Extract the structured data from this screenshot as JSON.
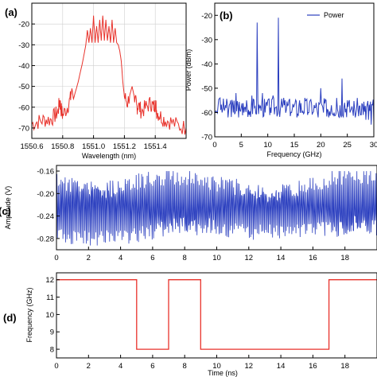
{
  "chart_data": [
    {
      "panel": "(a)",
      "type": "line",
      "xlabel": "Wavelength (nm)",
      "ylabel": "",
      "xlim": [
        1550.6,
        1551.6
      ],
      "ylim": [
        -75,
        -10
      ],
      "xticks": [
        1550.6,
        1550.8,
        1551.0,
        1551.2,
        1551.4
      ],
      "xtick_labels": [
        "1550.6",
        "1550.8",
        "1551.0",
        "1551.2",
        "1551.4"
      ],
      "yticks": [
        -70,
        -60,
        -50,
        -40,
        -30,
        -20
      ],
      "ytick_labels": [
        "-70",
        "-60",
        "-50",
        "-40",
        "-30",
        "-20"
      ],
      "grid": true,
      "color": "#e8322b",
      "series": [
        {
          "x": [
            1550.6,
            1550.64,
            1550.68,
            1550.72,
            1550.75,
            1550.77,
            1550.78,
            1550.79,
            1550.8,
            1550.83,
            1550.85,
            1550.86,
            1550.87,
            1550.9,
            1550.93,
            1550.95,
            1550.96,
            1550.97,
            1550.98,
            1550.99,
            1551.0,
            1551.01,
            1551.02,
            1551.03,
            1551.04,
            1551.05,
            1551.06,
            1551.07,
            1551.08,
            1551.09,
            1551.1,
            1551.11,
            1551.12,
            1551.13,
            1551.14,
            1551.15,
            1551.16,
            1551.17,
            1551.18,
            1551.19,
            1551.2,
            1551.22,
            1551.25,
            1551.27,
            1551.28,
            1551.29,
            1551.31,
            1551.34,
            1551.37,
            1551.39,
            1551.4,
            1551.41,
            1551.43,
            1551.46,
            1551.5,
            1551.55,
            1551.6
          ],
          "y": [
            -68,
            -67,
            -66,
            -66,
            -64,
            -62,
            -57,
            -61,
            -64,
            -60,
            -56,
            -51,
            -56,
            -48,
            -38,
            -30,
            -23,
            -29,
            -22,
            -29,
            -16,
            -29,
            -21,
            -29,
            -18,
            -28,
            -16,
            -28,
            -18,
            -28,
            -21,
            -29,
            -18,
            -29,
            -22,
            -29,
            -30,
            -33,
            -38,
            -48,
            -55,
            -58,
            -50,
            -57,
            -60,
            -59,
            -62,
            -60,
            -58,
            -60,
            -58,
            -62,
            -64,
            -66,
            -67,
            -69,
            -70
          ]
        }
      ]
    },
    {
      "panel": "(b)",
      "type": "line",
      "xlabel": "Frequency (GHz)",
      "ylabel": "Power (dBm)",
      "xlim": [
        0,
        30
      ],
      "ylim": [
        -70,
        -15
      ],
      "xticks": [
        0,
        5,
        10,
        15,
        20,
        25,
        30
      ],
      "xtick_labels": [
        "0",
        "5",
        "10",
        "15",
        "20",
        "25",
        "30"
      ],
      "yticks": [
        -70,
        -60,
        -50,
        -40,
        -30,
        -20
      ],
      "ytick_labels": [
        "-70",
        "-60",
        "-50",
        "-40",
        "-30",
        "-20"
      ],
      "legend": "Power",
      "legend_position": "top-right",
      "color": "#2b3fbf",
      "series": [
        {
          "name": "Power",
          "x": [
            0,
            1,
            1.5,
            2,
            2.5,
            3,
            3.5,
            4,
            4.5,
            5,
            5.5,
            6,
            6.5,
            7,
            7.5,
            8,
            8.5,
            9,
            9.5,
            10,
            10.5,
            11,
            11.5,
            12,
            12.5,
            13,
            13.5,
            14,
            14.5,
            15,
            15.5,
            16,
            16.5,
            17,
            17.5,
            18,
            18.5,
            19,
            19.5,
            20,
            20.5,
            21,
            21.5,
            22,
            22.5,
            23,
            23.5,
            24,
            24.5,
            25,
            25.5,
            26,
            26.5,
            27,
            27.5,
            28,
            28.5,
            29,
            29.5,
            30
          ],
          "y": [
            -60,
            -54,
            -59,
            -57,
            -62,
            -55,
            -60,
            -52,
            -62,
            -58,
            -60,
            -55,
            -61,
            -53,
            -58,
            -23,
            -58,
            -52,
            -60,
            -55,
            -58,
            -53,
            -58,
            -21,
            -57,
            -54,
            -59,
            -55,
            -60,
            -57,
            -62,
            -55,
            -60,
            -54,
            -61,
            -55,
            -60,
            -58,
            -62,
            -50,
            -60,
            -55,
            -62,
            -57,
            -60,
            -54,
            -62,
            -46,
            -56,
            -55,
            -60,
            -59,
            -62,
            -58,
            -61,
            -61,
            -63,
            -63,
            -65,
            -64
          ]
        }
      ]
    },
    {
      "panel": "(c)",
      "type": "line",
      "xlabel": "",
      "ylabel": "Amplitude (V)",
      "xlim": [
        0,
        20
      ],
      "ylim": [
        -0.3,
        -0.15
      ],
      "xticks": [
        0,
        2,
        4,
        6,
        8,
        10,
        12,
        14,
        16,
        18
      ],
      "xtick_labels": [
        "0",
        "2",
        "4",
        "6",
        "8",
        "10",
        "12",
        "14",
        "16",
        "18"
      ],
      "yticks": [
        -0.16,
        -0.2,
        -0.24,
        -0.28
      ],
      "ytick_labels": [
        "-0.16",
        "-0.20",
        "-0.24",
        "-0.28"
      ],
      "color": "#2b3fbf",
      "signal_note": "dense oscillation between about -0.17 V and -0.29 V over the full window"
    },
    {
      "panel": "(d)",
      "type": "line",
      "xlabel": "Time (ns)",
      "ylabel": "Frequency (GHz)",
      "xlim": [
        0,
        20
      ],
      "ylim": [
        7.5,
        12.4
      ],
      "xticks": [
        0,
        2,
        4,
        6,
        8,
        10,
        12,
        14,
        16,
        18
      ],
      "xtick_labels": [
        "0",
        "2",
        "4",
        "6",
        "8",
        "10",
        "12",
        "14",
        "16",
        "18"
      ],
      "yticks": [
        8,
        9,
        10,
        11,
        12
      ],
      "ytick_labels": [
        "8",
        "9",
        "10",
        "11",
        "12"
      ],
      "color": "#e8322b",
      "series": [
        {
          "x": [
            0,
            5,
            5,
            7,
            7,
            9,
            9,
            17,
            17,
            20
          ],
          "y": [
            12,
            12,
            8,
            8,
            12,
            12,
            8,
            8,
            12,
            12
          ]
        }
      ]
    }
  ]
}
